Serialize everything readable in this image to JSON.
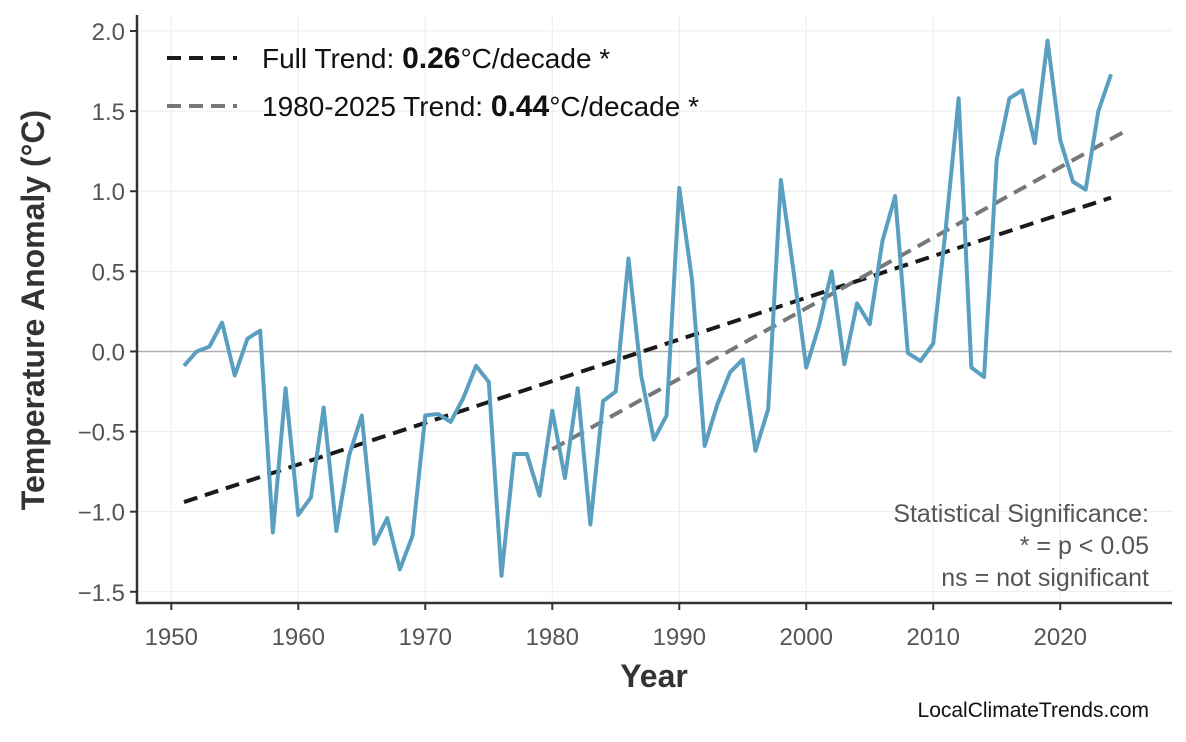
{
  "chart_data": {
    "type": "line",
    "title": "",
    "xlabel": "Year",
    "ylabel": "Temperature Anomaly (°C)",
    "xlim": [
      1947.3,
      2028.8
    ],
    "ylim": [
      -1.57,
      2.1
    ],
    "xticks": [
      1950,
      1960,
      1970,
      1980,
      1990,
      2000,
      2010,
      2020
    ],
    "yticks": [
      -1.5,
      -1.0,
      -0.5,
      0.0,
      0.5,
      1.0,
      1.5,
      2.0
    ],
    "ytick_labels": [
      "−1.5",
      "−1.0",
      "−0.5",
      "0.0",
      "0.5",
      "1.0",
      "1.5",
      "2.0"
    ],
    "grid": true,
    "zero_line": true,
    "series": [
      {
        "color": "#5a9fc0",
        "x": [
          1951,
          1952,
          1953,
          1954,
          1955,
          1956,
          1957,
          1958,
          1959,
          1960,
          1961,
          1962,
          1963,
          1964,
          1965,
          1966,
          1967,
          1968,
          1969,
          1970,
          1971,
          1972,
          1973,
          1974,
          1975,
          1976,
          1977,
          1978,
          1979,
          1980,
          1981,
          1982,
          1983,
          1984,
          1985,
          1986,
          1987,
          1988,
          1989,
          1990,
          1991,
          1992,
          1993,
          1994,
          1995,
          1996,
          1997,
          1998,
          1999,
          2000,
          2001,
          2002,
          2003,
          2004,
          2005,
          2006,
          2007,
          2008,
          2009,
          2010,
          2011,
          2012,
          2013,
          2014,
          2015,
          2016,
          2017,
          2018,
          2019,
          2020,
          2021,
          2022,
          2023,
          2024
        ],
        "y": [
          -0.09,
          0.0,
          0.03,
          0.18,
          -0.15,
          0.08,
          0.13,
          -1.13,
          -0.23,
          -1.02,
          -0.91,
          -0.35,
          -1.12,
          -0.65,
          -0.4,
          -1.2,
          -1.04,
          -1.36,
          -1.15,
          -0.4,
          -0.39,
          -0.44,
          -0.29,
          -0.09,
          -0.19,
          -1.4,
          -0.64,
          -0.64,
          -0.9,
          -0.37,
          -0.79,
          -0.23,
          -1.08,
          -0.31,
          -0.25,
          0.58,
          -0.15,
          -0.55,
          -0.4,
          1.02,
          0.45,
          -0.59,
          -0.33,
          -0.13,
          -0.05,
          -0.62,
          -0.36,
          1.07,
          0.5,
          -0.1,
          0.16,
          0.5,
          -0.08,
          0.3,
          0.17,
          0.69,
          0.97,
          -0.01,
          -0.06,
          0.05,
          0.78,
          1.58,
          -0.1,
          -0.16,
          1.2,
          1.58,
          1.63,
          1.3,
          1.94,
          1.32,
          1.06,
          1.01,
          1.5,
          1.73
        ]
      }
    ],
    "trends": [
      {
        "name_prefix": "Full Trend: ",
        "value": "0.26",
        "unit": "°C/decade *",
        "color": "#1a1a1a",
        "x": [
          1951,
          2024
        ],
        "y": [
          -0.94,
          0.96
        ]
      },
      {
        "name_prefix": "1980-2025 Trend: ",
        "value": "0.44",
        "unit": "°C/decade *",
        "color": "#777777",
        "x": [
          1980,
          2025
        ],
        "y": [
          -0.61,
          1.37
        ]
      }
    ],
    "legend_placement": "top-left",
    "annotation": [
      "Statistical Significance:",
      "* = p < 0.05",
      "ns = not significant"
    ],
    "watermark": "LocalClimateTrends.com"
  }
}
